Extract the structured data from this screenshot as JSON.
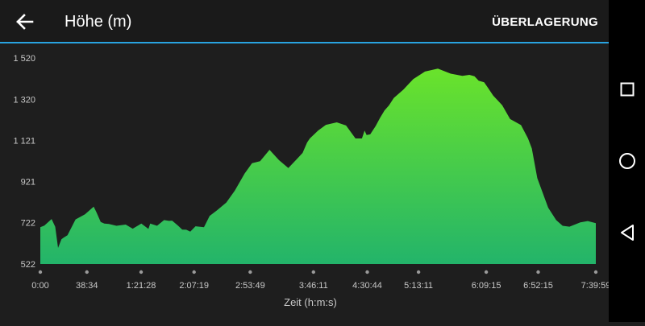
{
  "header": {
    "title": "Höhe (m)",
    "overlay_label": "ÜBERLAGERUNG",
    "back_icon": "arrow-left-icon",
    "accent_color": "#29a3e0"
  },
  "navbar": {
    "square_icon": "recents-square-icon",
    "circle_icon": "home-circle-icon",
    "triangle_icon": "back-triangle-icon"
  },
  "chart_data": {
    "type": "area",
    "title": "",
    "xlabel": "Zeit (h:m:s)",
    "ylabel": "",
    "ylim": [
      522,
      1520
    ],
    "xlim": [
      0,
      27599
    ],
    "y_ticks": [
      522,
      722,
      921,
      1121,
      1320,
      1520
    ],
    "y_tick_labels": [
      "522",
      "722",
      "921",
      "1 121",
      "1 320",
      "1 520"
    ],
    "x_ticks": [
      0,
      2314,
      5008,
      7639,
      10429,
      13571,
      16244,
      18791,
      22155,
      24735,
      27599
    ],
    "x_tick_labels": [
      "0:00",
      "38:34",
      "1:21:28",
      "2:07:19",
      "2:53:49",
      "3:46:11",
      "4:30:44",
      "5:13:11",
      "6:09:15",
      "6:52:15",
      "7:39:59"
    ],
    "grid": false,
    "colors": {
      "top": "#6ae32b",
      "bottom": "#23b46a",
      "text": "#c8c8c8"
    },
    "series": [
      {
        "x": [
          0,
          200,
          560,
          740,
          880,
          1050,
          1150,
          1350,
          1750,
          2220,
          2650,
          2790,
          3000,
          3180,
          3410,
          3780,
          4240,
          4590,
          5020,
          5370,
          5460,
          5800,
          6150,
          6390,
          6550,
          6850,
          7050,
          7250,
          7450,
          7710,
          8130,
          8410,
          8780,
          9240,
          9660,
          10150,
          10520,
          10920,
          11390,
          11860,
          12320,
          12720,
          13030,
          13250,
          13390,
          13800,
          14190,
          14730,
          15190,
          15660,
          15980,
          16110,
          16210,
          16390,
          16660,
          16880,
          17100,
          17320,
          17560,
          18040,
          18530,
          19110,
          19750,
          20390,
          20970,
          21320,
          21570,
          21780,
          22050,
          22230,
          22500,
          22950,
          23340,
          23880,
          24230,
          24420,
          24690,
          25230,
          25630,
          25950,
          26290,
          26830,
          27200,
          27599
        ],
        "y": [
          700,
          708,
          740,
          702,
          600,
          642,
          649,
          661,
          738,
          763,
          800,
          772,
          726,
          718,
          716,
          707,
          713,
          693,
          718,
          692,
          718,
          707,
          735,
          731,
          732,
          707,
          689,
          688,
          679,
          705,
          700,
          755,
          782,
          820,
          877,
          960,
          1010,
          1020,
          1075,
          1025,
          987,
          1028,
          1060,
          1110,
          1130,
          1168,
          1196,
          1208,
          1193,
          1130,
          1130,
          1168,
          1147,
          1150,
          1190,
          1230,
          1266,
          1290,
          1326,
          1367,
          1418,
          1454,
          1468,
          1444,
          1433,
          1438,
          1431,
          1410,
          1402,
          1377,
          1338,
          1291,
          1224,
          1195,
          1130,
          1082,
          938,
          795,
          735,
          707,
          703,
          724,
          730,
          720
        ]
      }
    ]
  }
}
